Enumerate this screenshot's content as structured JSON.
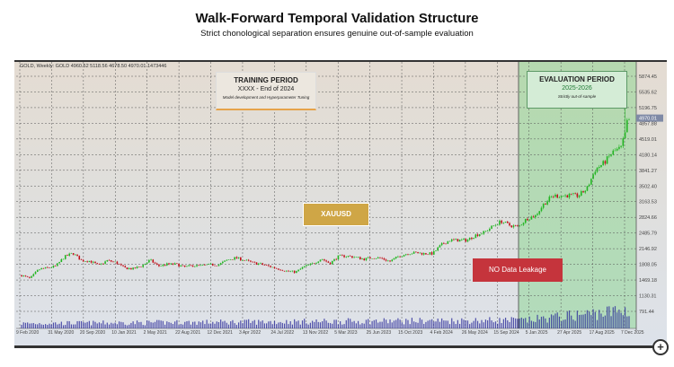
{
  "header": {
    "title": "Walk-Forward Temporal Validation Structure",
    "subtitle": "Strict chonological separation ensures genuine out-of-sample evaluation"
  },
  "ticker": "GOLD, Weekly: GOLD  4960.52 5118.56 4678.50 4970.01 1473446",
  "training": {
    "title": "TRAINING PERIOD",
    "range": "XXXX - End of 2024",
    "note": "Model development and Hyperparameter Tuning"
  },
  "evaluation": {
    "title": "EVALUATION PERIOD",
    "range": "2025-2026",
    "note": "Strictly out-of-sample"
  },
  "symbol_label": "XAUUSD",
  "leak_label": "NO Data Leakage",
  "current_price": "4970.01",
  "colors": {
    "bull": "#22b522",
    "bear": "#c0101a",
    "volume": "#2a2a9a",
    "eval_zone": "#7fd486",
    "leak": "#c5343c",
    "symbol": "#cfa646"
  },
  "icons": {
    "zoom": "zoom-in-icon"
  },
  "chart_data": {
    "type": "candlestick",
    "price_ticks": [
      "5874.45",
      "5535.62",
      "5196.75",
      "4857.88",
      "4519.01",
      "4180.14",
      "3841.27",
      "3502.40",
      "3163.53",
      "2824.66",
      "2485.79",
      "2146.92",
      "1808.05",
      "1469.18",
      "1130.31",
      "791.44"
    ],
    "date_ticks": [
      "9 Feb 2020",
      "31 May 2020",
      "20 Sep 2020",
      "10 Jan 2021",
      "2 May 2021",
      "22 Aug 2021",
      "12 Dec 2021",
      "3 Apr 2022",
      "24 Jul 2022",
      "13 Nov 2022",
      "5 Mar 2023",
      "25 Jun 2023",
      "15 Oct 2023",
      "4 Feb 2024",
      "26 May 2024",
      "15 Sep 2024",
      "5 Jan 2025",
      "27 Apr 2025",
      "17 Aug 2025",
      "7 Dec 2025"
    ],
    "evaluation_start": "5 Jan 2025",
    "monthly_close_approx": [
      1570,
      1500,
      1700,
      1730,
      1770,
      1970,
      2050,
      1890,
      1880,
      1780,
      1890,
      1850,
      1730,
      1710,
      1770,
      1900,
      1770,
      1810,
      1810,
      1750,
      1780,
      1780,
      1800,
      1800,
      1900,
      1950,
      1900,
      1840,
      1810,
      1760,
      1710,
      1660,
      1640,
      1760,
      1820,
      1930,
      1830,
      1980,
      1990,
      1960,
      1920,
      1960,
      1940,
      1870,
      1980,
      2040,
      2060,
      2040,
      2040,
      2230,
      2330,
      2330,
      2330,
      2440,
      2500,
      2630,
      2740,
      2650,
      2620,
      2800,
      2860,
      3120,
      3290,
      3290,
      3300,
      3290,
      3440,
      3860,
      4000,
      4230,
      4330,
      4970
    ],
    "grid": true
  }
}
